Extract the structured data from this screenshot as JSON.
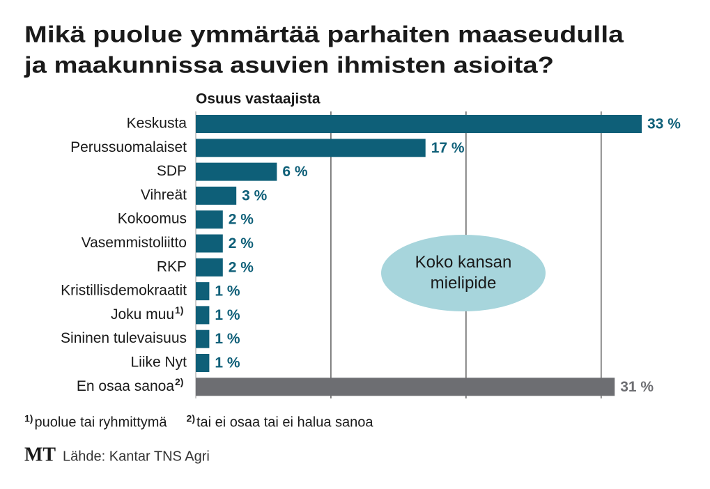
{
  "chart_data": {
    "type": "bar",
    "orientation": "horizontal",
    "title_lines": [
      "Mikä puolue ymmärtää parhaiten maaseudulla",
      "ja maakunnissa asuvien ihmisten asioita?"
    ],
    "x_label": "Osuus vastaajista",
    "categories": [
      "Keskusta",
      "Perussuomalaiset",
      "SDP",
      "Vihreät",
      "Kokoomus",
      "Vasemmistoliitto",
      "RKP",
      "Kristillisdemokraatit",
      "Joku muu",
      "Sininen tulevaisuus",
      "Liike Nyt",
      "En osaa sanoa"
    ],
    "category_marks": [
      null,
      null,
      null,
      null,
      null,
      null,
      null,
      null,
      "1)",
      null,
      null,
      "2)"
    ],
    "values": [
      33,
      17,
      6,
      3,
      2,
      2,
      2,
      1,
      1,
      1,
      1,
      31
    ],
    "value_labels": [
      "33 %",
      "17 %",
      "6 %",
      "3 %",
      "2 %",
      "2 %",
      "2 %",
      "1 %",
      "1 %",
      "1 %",
      "1 %",
      "31 %"
    ],
    "colors": [
      "#0e5f78",
      "#0e5f78",
      "#0e5f78",
      "#0e5f78",
      "#0e5f78",
      "#0e5f78",
      "#0e5f78",
      "#0e5f78",
      "#0e5f78",
      "#0e5f78",
      "#0e5f78",
      "#6d6e72"
    ],
    "xlim": [
      0,
      33
    ],
    "xticks": [
      0,
      10,
      20,
      30
    ],
    "tick_labels": false,
    "grid": true,
    "annotation": "Koko kansan mielipide",
    "footnotes": [
      {
        "mark": "1)",
        "text": "puolue tai ryhmittymä"
      },
      {
        "mark": "2)",
        "text": "tai ei osaa tai ei halua sanoa"
      }
    ],
    "logo": "MT",
    "source": "Lähde: Kantar TNS Agri"
  }
}
